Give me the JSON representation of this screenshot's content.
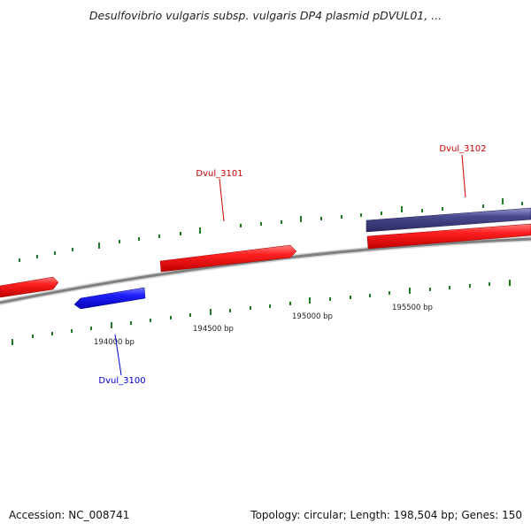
{
  "title": "Desulfovibrio vulgaris subsp. vulgaris DP4 plasmid pDVUL01, ...",
  "footer": {
    "accession": "Accession: NC_008741",
    "summary": "Topology: circular; Length: 198,504 bp; Genes: 150"
  },
  "colors": {
    "backbone": "#8a8a8a",
    "tick": "#1d7a1d",
    "forward_gene": "#ee1111",
    "reverse_gene": "#1a1aee",
    "other_gene": "#4a4a8a",
    "label_forward": "#cc0000",
    "label_reverse": "#0000cc"
  },
  "axis_labels": [
    "194000 bp",
    "194500 bp",
    "195000 bp",
    "195500 bp"
  ],
  "genes": [
    {
      "id": "gene-unlabeled-left",
      "label": "",
      "strand": "+",
      "color": "forward_gene"
    },
    {
      "id": "gene-dvul-3100",
      "label": "Dvul_3100",
      "strand": "-",
      "color": "reverse_gene"
    },
    {
      "id": "gene-dvul-3101",
      "label": "Dvul_3101",
      "strand": "+",
      "color": "forward_gene"
    },
    {
      "id": "gene-dvul-3102",
      "label": "Dvul_3102",
      "strand": "+",
      "color": "forward_gene"
    },
    {
      "id": "gene-dvul-3102-partner",
      "label": "",
      "strand": "+",
      "color": "other_gene"
    }
  ]
}
